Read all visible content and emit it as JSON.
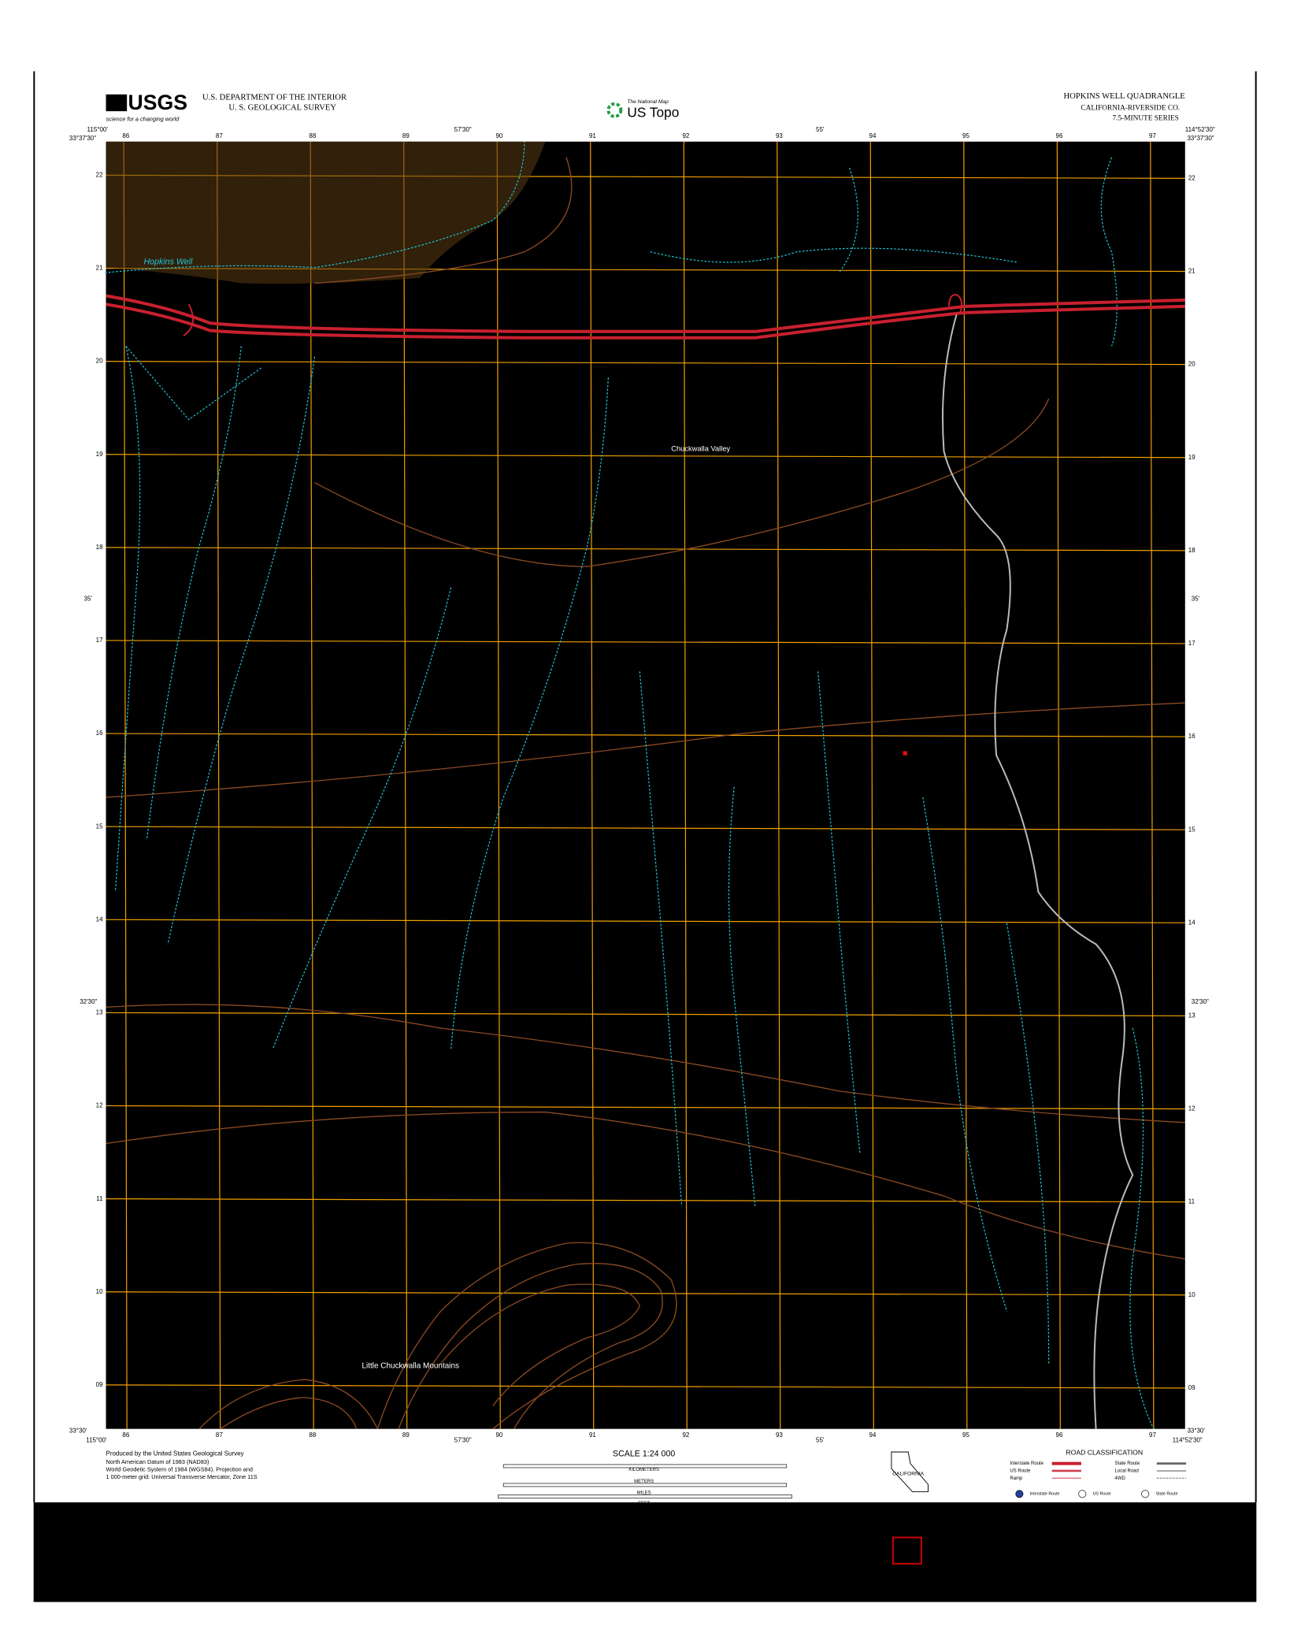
{
  "header": {
    "agency_line1": "U.S. DEPARTMENT OF THE INTERIOR",
    "agency_line2": "U. S. GEOLOGICAL SURVEY",
    "logo": "USGS",
    "tagline": "science for a changing world",
    "map_program": "The National Map",
    "product": "US Topo",
    "quadrangle": "HOPKINS WELL QUADRANGLE",
    "county": "CALIFORNIA-RIVERSIDE CO.",
    "series": "7.5-MINUTE SERIES"
  },
  "corners": {
    "nw_lat": "33°37'30\"",
    "nw_lon": "115°00'",
    "ne_lat": "33°37'30\"",
    "ne_lon": "114°52'30\"",
    "sw_lat": "33°30'",
    "sw_lon": "115°00'",
    "se_lat": "33°30'",
    "se_lon": "114°52'30\""
  },
  "graticule": {
    "top": [
      "57'30\"",
      "55'"
    ],
    "side": [
      "35'",
      "32'30\""
    ]
  },
  "eastings": [
    "86",
    "87",
    "88",
    "89",
    "90",
    "91",
    "92",
    "93",
    "94",
    "95",
    "96",
    "97"
  ],
  "northings": [
    "22",
    "21",
    "20",
    "19",
    "18",
    "17",
    "16",
    "15",
    "14",
    "13",
    "12",
    "11",
    "10",
    "09"
  ],
  "features": [
    "Hopkins Well",
    "Chuckwalla Valley",
    "Little Chuckwalla Mountains"
  ],
  "footer": {
    "producer": "Produced by the United States Geological Survey",
    "datum": "North American Datum of 1983 (NAD83)",
    "datum2": "World Geodetic System of 1984 (WGS84). Projection and",
    "grid": "1 000-meter grid: Universal Transverse Mercator, Zone 11S",
    "scale": "SCALE 1:24 000",
    "km": "KILOMETERS",
    "meters": "METERS",
    "miles": "MILES",
    "feet": "FEET",
    "road_title": "ROAD CLASSIFICATION",
    "roads": [
      "Interstate Route",
      "US Route",
      "Ramp",
      "State Route",
      "Local Road",
      "4WD"
    ],
    "shields": [
      "Interstate Route",
      "US Route",
      "State Route"
    ],
    "state": "CALIFORNIA"
  }
}
